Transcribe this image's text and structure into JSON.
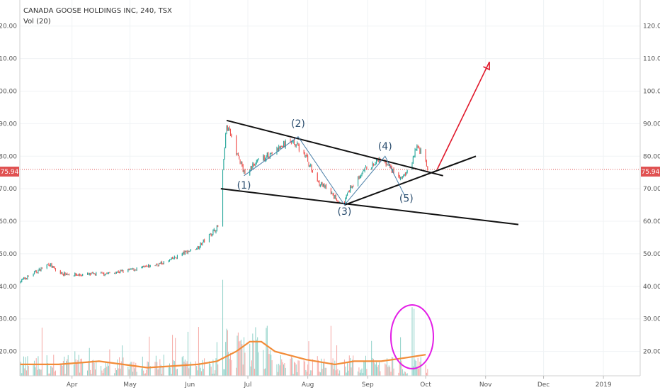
{
  "header": {
    "title": "CANADA GOOSE HOLDINGS INC, 240, TSX",
    "volume_label": "Vol (20)"
  },
  "price_tag": "75.94",
  "colors": {
    "up": "#26a69a",
    "down": "#ef5350",
    "vol_up": "#8fd1c8",
    "vol_down": "#f5a8a5",
    "vol_ma": "#f28c38",
    "trend": "#111111",
    "wave": "#4a7fa8",
    "target_arrow": "#e0182b",
    "circle": "#e31ee6",
    "price_line": "#e05252"
  },
  "chart_data": {
    "type": "candlestick",
    "price_axis": {
      "ticks": [
        "120.00",
        "110.00",
        "100.00",
        "90.00",
        "80.00",
        "70.00",
        "60.00",
        "50.00",
        "40.00",
        "30.00",
        "20.00"
      ],
      "range": [
        12.5,
        128
      ]
    },
    "time_axis": {
      "ticks": [
        "Apr",
        "May",
        "Jun",
        "Jul",
        "Aug",
        "Sep",
        "Oct",
        "Nov",
        "Dec",
        "2019"
      ],
      "tick_dates": [
        "2018-04-01",
        "2018-05-01",
        "2018-06-01",
        "2018-07-01",
        "2018-08-01",
        "2018-09-01",
        "2018-10-01",
        "2018-11-01",
        "2018-12-01",
        "2019-01-01"
      ],
      "range": [
        "2018-03-05",
        "2019-01-20"
      ]
    },
    "last_price": 75.94,
    "price_path": [
      [
        "2018-03-05",
        41.5
      ],
      [
        "2018-03-15",
        45
      ],
      [
        "2018-03-20",
        47
      ],
      [
        "2018-03-25",
        44
      ],
      [
        "2018-04-05",
        43.5
      ],
      [
        "2018-04-20",
        44
      ],
      [
        "2018-05-01",
        45
      ],
      [
        "2018-05-10",
        46
      ],
      [
        "2018-05-20",
        47.5
      ],
      [
        "2018-05-28",
        50
      ],
      [
        "2018-06-05",
        52
      ],
      [
        "2018-06-10",
        55
      ],
      [
        "2018-06-15",
        58
      ],
      [
        "2018-06-17",
        60
      ],
      [
        "2018-06-18",
        75
      ],
      [
        "2018-06-20",
        90
      ],
      [
        "2018-06-24",
        83
      ],
      [
        "2018-06-29",
        75
      ],
      [
        "2018-07-08",
        79
      ],
      [
        "2018-07-16",
        82
      ],
      [
        "2018-07-24",
        85
      ],
      [
        "2018-07-31",
        80
      ],
      [
        "2018-08-05",
        73
      ],
      [
        "2018-08-12",
        69
      ],
      [
        "2018-08-19",
        65
      ],
      [
        "2018-08-23",
        70
      ],
      [
        "2018-08-31",
        76
      ],
      [
        "2018-09-08",
        79
      ],
      [
        "2018-09-13",
        76
      ],
      [
        "2018-09-18",
        73
      ],
      [
        "2018-09-23",
        76
      ],
      [
        "2018-09-26",
        83
      ],
      [
        "2018-09-29",
        81
      ],
      [
        "2018-10-02",
        76
      ]
    ],
    "volume_ma": [
      [
        "2018-03-05",
        16
      ],
      [
        "2018-03-25",
        16
      ],
      [
        "2018-04-15",
        17
      ],
      [
        "2018-05-10",
        15
      ],
      [
        "2018-06-05",
        16
      ],
      [
        "2018-06-15",
        17
      ],
      [
        "2018-06-25",
        20
      ],
      [
        "2018-07-02",
        23
      ],
      [
        "2018-07-08",
        23
      ],
      [
        "2018-07-15",
        20
      ],
      [
        "2018-07-31",
        17.5
      ],
      [
        "2018-08-15",
        16
      ],
      [
        "2018-08-25",
        17
      ],
      [
        "2018-09-08",
        17
      ],
      [
        "2018-09-20",
        18
      ],
      [
        "2018-10-01",
        19
      ]
    ],
    "annotations": {
      "trendlines": [
        {
          "from": [
            "2018-06-20",
            91
          ],
          "to": [
            "2018-10-10",
            74
          ]
        },
        {
          "from": [
            "2018-06-17",
            70
          ],
          "to": [
            "2018-11-18",
            59
          ]
        },
        {
          "from": [
            "2018-08-20",
            65
          ],
          "to": [
            "2018-10-27",
            80
          ]
        }
      ],
      "wave_path": [
        [
          "2018-06-29",
          74
        ],
        [
          "2018-07-27",
          86
        ],
        [
          "2018-08-20",
          65
        ],
        [
          "2018-09-10",
          80
        ],
        [
          "2018-09-20",
          68
        ]
      ],
      "wave_labels": [
        {
          "text": "(1)",
          "x": "2018-06-29",
          "y": 70
        },
        {
          "text": "(2)",
          "x": "2018-07-27",
          "y": 89
        },
        {
          "text": "(3)",
          "x": "2018-08-20",
          "y": 62
        },
        {
          "text": "(4)",
          "x": "2018-09-10",
          "y": 82
        },
        {
          "text": "(5)",
          "x": "2018-09-21",
          "y": 66
        }
      ],
      "target_arrow": {
        "from": [
          "2018-10-07",
          76
        ],
        "to": [
          "2018-11-03",
          109
        ]
      },
      "volume_circle": {
        "center": [
          "2018-09-24",
          24.5
        ],
        "rx_days": 11,
        "ry": 9.8
      }
    }
  }
}
